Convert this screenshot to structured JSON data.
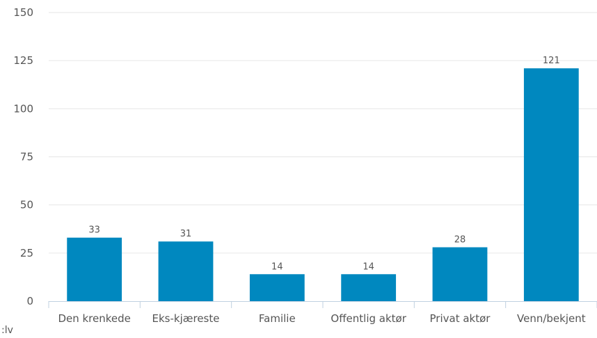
{
  "chart_data": {
    "type": "bar",
    "categories": [
      "Den krenkede",
      "Eks-kjæreste",
      "Familie",
      "Offentlig aktør",
      "Privat aktør",
      "Venn/bekjent"
    ],
    "values": [
      33,
      31,
      14,
      14,
      28,
      121
    ],
    "data_labels": [
      "33",
      "31",
      "14",
      "14",
      "28",
      "121"
    ],
    "yticks": [
      "0",
      "25",
      "50",
      "75",
      "100",
      "125",
      "150"
    ],
    "ylim": [
      0,
      150
    ],
    "grid": true,
    "legend": "none",
    "colors": {
      "bar": "#0088bf",
      "grid": "#e6e6e6",
      "axis": "#c0d0e0",
      "text": "#555555"
    }
  },
  "footnote": ":lv"
}
